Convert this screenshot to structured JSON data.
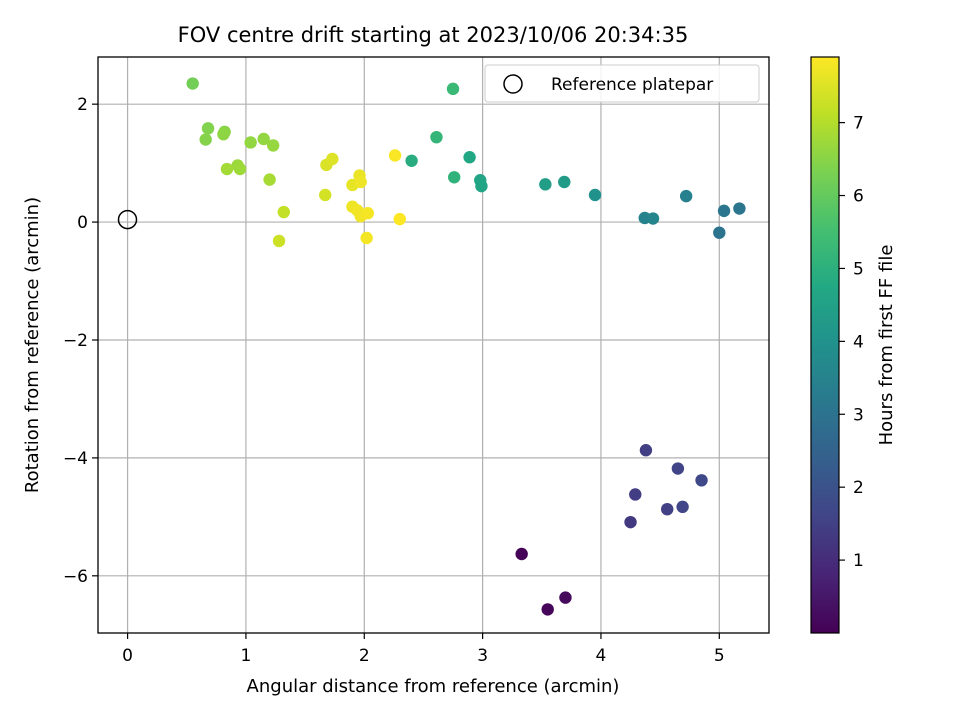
{
  "chart_data": {
    "type": "scatter",
    "title": "FOV centre drift starting at 2023/10/06 20:34:35",
    "xlabel": "Angular distance from reference (arcmin)",
    "ylabel": "Rotation from reference (arcmin)",
    "xlim": [
      -0.25,
      5.42
    ],
    "ylim": [
      -6.97,
      2.8
    ],
    "x_ticks": [
      0,
      1,
      2,
      3,
      4,
      5
    ],
    "y_ticks": [
      -6,
      -4,
      -2,
      0,
      2
    ],
    "grid": true,
    "legend": {
      "location": "top-right",
      "entries": [
        "Reference platepar"
      ]
    },
    "reference_point": {
      "x": 0,
      "y": 0,
      "label": "Reference platepar"
    },
    "colorbar": {
      "label": "Hours from first FF file",
      "colormap": "viridis",
      "min": 0.0,
      "max": 7.9,
      "ticks": [
        1,
        2,
        3,
        4,
        5,
        6,
        7
      ]
    },
    "series": [
      {
        "points": [
          {
            "x": 3.33,
            "y": -5.63,
            "c": 0.05
          },
          {
            "x": 3.55,
            "y": -6.57,
            "c": 0.1
          },
          {
            "x": 3.7,
            "y": -6.37,
            "c": 0.2
          },
          {
            "x": 4.25,
            "y": -5.09,
            "c": 1.3
          },
          {
            "x": 4.29,
            "y": -4.62,
            "c": 1.4
          },
          {
            "x": 4.38,
            "y": -3.87,
            "c": 1.45
          },
          {
            "x": 4.56,
            "y": -4.87,
            "c": 1.5
          },
          {
            "x": 4.65,
            "y": -4.18,
            "c": 1.6
          },
          {
            "x": 4.69,
            "y": -4.83,
            "c": 1.65
          },
          {
            "x": 4.85,
            "y": -4.38,
            "c": 1.7
          },
          {
            "x": 5.0,
            "y": -0.18,
            "c": 3.0
          },
          {
            "x": 5.04,
            "y": 0.19,
            "c": 3.05
          },
          {
            "x": 5.17,
            "y": 0.23,
            "c": 3.1
          },
          {
            "x": 4.72,
            "y": 0.44,
            "c": 3.4
          },
          {
            "x": 4.37,
            "y": 0.07,
            "c": 3.5
          },
          {
            "x": 4.44,
            "y": 0.06,
            "c": 3.55
          },
          {
            "x": 3.95,
            "y": 0.46,
            "c": 4.0
          },
          {
            "x": 3.69,
            "y": 0.68,
            "c": 4.3
          },
          {
            "x": 3.53,
            "y": 0.64,
            "c": 4.4
          },
          {
            "x": 2.99,
            "y": 0.61,
            "c": 4.6
          },
          {
            "x": 2.98,
            "y": 0.71,
            "c": 4.65
          },
          {
            "x": 2.89,
            "y": 1.1,
            "c": 4.7
          },
          {
            "x": 2.4,
            "y": 1.04,
            "c": 4.9
          },
          {
            "x": 2.76,
            "y": 0.76,
            "c": 5.1
          },
          {
            "x": 2.61,
            "y": 1.44,
            "c": 5.2
          },
          {
            "x": 2.75,
            "y": 2.26,
            "c": 5.3
          },
          {
            "x": 0.55,
            "y": 2.35,
            "c": 6.2
          },
          {
            "x": 0.68,
            "y": 1.59,
            "c": 6.4
          },
          {
            "x": 0.66,
            "y": 1.4,
            "c": 6.45
          },
          {
            "x": 0.82,
            "y": 1.53,
            "c": 6.5
          },
          {
            "x": 0.81,
            "y": 1.49,
            "c": 6.55
          },
          {
            "x": 1.15,
            "y": 1.41,
            "c": 6.6
          },
          {
            "x": 1.04,
            "y": 1.35,
            "c": 6.6
          },
          {
            "x": 1.23,
            "y": 1.3,
            "c": 6.65
          },
          {
            "x": 0.93,
            "y": 0.96,
            "c": 6.7
          },
          {
            "x": 0.95,
            "y": 0.9,
            "c": 6.75
          },
          {
            "x": 0.84,
            "y": 0.9,
            "c": 6.8
          },
          {
            "x": 1.2,
            "y": 0.72,
            "c": 6.85
          },
          {
            "x": 1.32,
            "y": 0.17,
            "c": 7.2
          },
          {
            "x": 1.28,
            "y": -0.32,
            "c": 7.3
          },
          {
            "x": 1.67,
            "y": 0.46,
            "c": 7.4
          },
          {
            "x": 1.68,
            "y": 0.97,
            "c": 7.45
          },
          {
            "x": 1.73,
            "y": 1.07,
            "c": 7.5
          },
          {
            "x": 1.9,
            "y": 0.63,
            "c": 7.6
          },
          {
            "x": 1.96,
            "y": 0.79,
            "c": 7.65
          },
          {
            "x": 1.97,
            "y": 0.68,
            "c": 7.7
          },
          {
            "x": 1.9,
            "y": 0.26,
            "c": 7.7
          },
          {
            "x": 1.94,
            "y": 0.2,
            "c": 7.75
          },
          {
            "x": 1.97,
            "y": 0.1,
            "c": 7.75
          },
          {
            "x": 2.03,
            "y": 0.15,
            "c": 7.8
          },
          {
            "x": 2.02,
            "y": -0.27,
            "c": 7.8
          },
          {
            "x": 2.26,
            "y": 1.13,
            "c": 7.85
          },
          {
            "x": 2.3,
            "y": 0.05,
            "c": 7.9
          }
        ]
      }
    ]
  }
}
